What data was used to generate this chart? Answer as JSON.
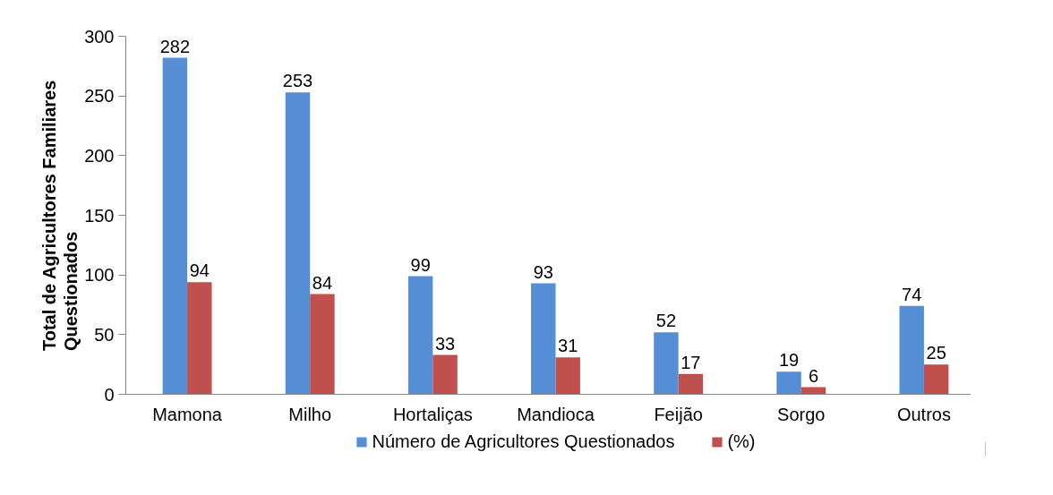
{
  "chart_data": {
    "type": "bar",
    "ylabel": "Total de Agricultores Familiares\nQuestionados",
    "categories": [
      "Mamona",
      "Milho",
      "Hortaliças",
      "Mandioca",
      "Feijão",
      "Sorgo",
      "Outros"
    ],
    "series": [
      {
        "name": "Número de Agricultores Questionados",
        "color": "#558ed5",
        "values": [
          282,
          253,
          99,
          93,
          52,
          19,
          74
        ]
      },
      {
        "name": "(%)",
        "color": "#c0504d",
        "values": [
          94,
          84,
          33,
          31,
          17,
          6,
          25
        ]
      }
    ],
    "ylim": [
      0,
      300
    ],
    "yticks": [
      0,
      50,
      100,
      150,
      200,
      250,
      300
    ],
    "data_labels": true,
    "legend": "bottom",
    "grid": false
  }
}
